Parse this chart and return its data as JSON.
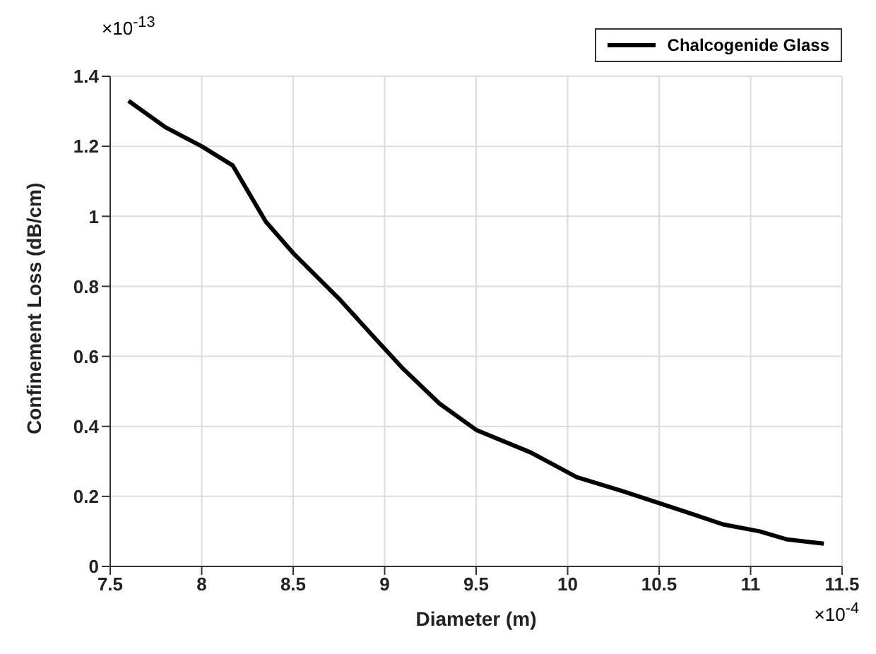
{
  "chart_data": {
    "type": "line",
    "xlabel": "Diameter (m)",
    "ylabel": "Confinement Loss (dB/cm)",
    "x": [
      7.6,
      7.8,
      8.0,
      8.17,
      8.35,
      8.5,
      8.75,
      8.95,
      9.1,
      9.3,
      9.5,
      9.8,
      10.05,
      10.3,
      10.65,
      10.85,
      11.05,
      11.2,
      11.4
    ],
    "series": [
      {
        "name": "Chalcogenide Glass",
        "color": "#000000",
        "values": [
          1.33,
          1.255,
          1.2,
          1.145,
          0.985,
          0.895,
          0.765,
          0.65,
          0.565,
          0.465,
          0.39,
          0.325,
          0.255,
          0.215,
          0.155,
          0.12,
          0.1,
          0.077,
          0.065
        ]
      }
    ],
    "xlim": [
      7.5,
      11.5
    ],
    "xticks": [
      7.5,
      8,
      8.5,
      9,
      9.5,
      10,
      10.5,
      11,
      11.5
    ],
    "ylim": [
      0,
      1.4
    ],
    "yticks": [
      0,
      0.2,
      0.4,
      0.6,
      0.8,
      1,
      1.2,
      1.4
    ],
    "annotations": [
      "×10$^{-13}$",
      "×10$^{-4}$"
    ],
    "grid": true,
    "legend": "top right",
    "marker": "none",
    "line_style": "solid"
  }
}
